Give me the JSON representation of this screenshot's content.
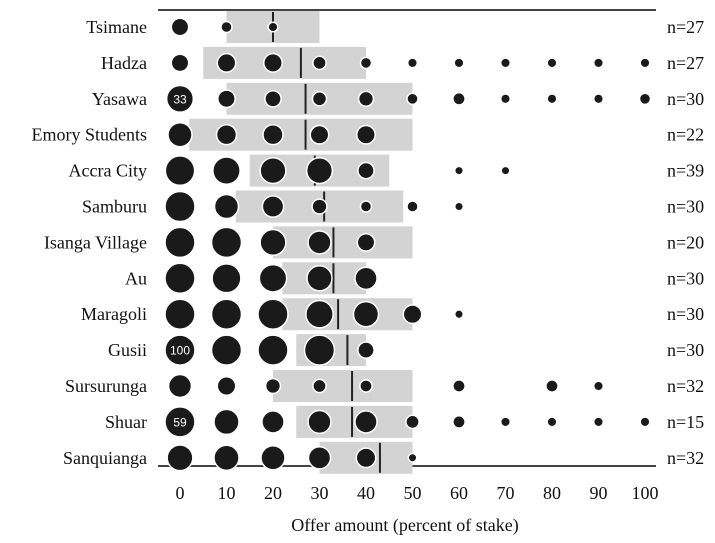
{
  "chart_data": {
    "type": "scatter",
    "title": "",
    "xlabel": "Offer amount (percent of stake)",
    "xlim": [
      0,
      100
    ],
    "xticks": [
      0,
      10,
      20,
      30,
      40,
      50,
      60,
      70,
      80,
      90,
      100
    ],
    "colors": {
      "bar": "#d3d3d3",
      "dot": "#1a1a1a",
      "mean": "#222222",
      "axis": "#444444"
    },
    "rows": [
      {
        "name": "Tsimane",
        "n": "n=27",
        "range": [
          10,
          30
        ],
        "mean": 20,
        "dots": [
          {
            "x": 0,
            "v": 10
          },
          {
            "x": 10,
            "v": 2
          },
          {
            "x": 20,
            "v": 1
          }
        ]
      },
      {
        "name": "Hadza",
        "n": "n=27",
        "range": [
          5,
          40
        ],
        "mean": 26,
        "dots": [
          {
            "x": 0,
            "v": 10
          },
          {
            "x": 10,
            "v": 12
          },
          {
            "x": 20,
            "v": 12
          },
          {
            "x": 30,
            "v": 4
          },
          {
            "x": 40,
            "v": 2
          },
          {
            "x": 50,
            "v": 1
          },
          {
            "x": 60,
            "v": 1
          },
          {
            "x": 70,
            "v": 1
          },
          {
            "x": 80,
            "v": 1
          },
          {
            "x": 90,
            "v": 1
          },
          {
            "x": 100,
            "v": 1
          }
        ]
      },
      {
        "name": "Yasawa",
        "n": "n=30",
        "range": [
          10,
          50
        ],
        "mean": 27,
        "dots": [
          {
            "x": 0,
            "v": 33,
            "label": "33"
          },
          {
            "x": 10,
            "v": 10
          },
          {
            "x": 20,
            "v": 8
          },
          {
            "x": 30,
            "v": 5
          },
          {
            "x": 40,
            "v": 6
          },
          {
            "x": 50,
            "v": 2
          },
          {
            "x": 60,
            "v": 3
          },
          {
            "x": 70,
            "v": 1
          },
          {
            "x": 80,
            "v": 1
          },
          {
            "x": 90,
            "v": 1
          },
          {
            "x": 100,
            "v": 2
          }
        ]
      },
      {
        "name": "Emory Students",
        "n": "n=22",
        "range": [
          2,
          50
        ],
        "mean": 27,
        "dots": [
          {
            "x": 0,
            "v": 25
          },
          {
            "x": 10,
            "v": 15
          },
          {
            "x": 20,
            "v": 15
          },
          {
            "x": 30,
            "v": 12
          },
          {
            "x": 40,
            "v": 12
          }
        ]
      },
      {
        "name": "Accra City",
        "n": "n=39",
        "range": [
          15,
          45
        ],
        "mean": 29,
        "dots": [
          {
            "x": 0,
            "v": 42
          },
          {
            "x": 10,
            "v": 35
          },
          {
            "x": 20,
            "v": 30
          },
          {
            "x": 30,
            "v": 30
          },
          {
            "x": 40,
            "v": 8
          },
          {
            "x": 60,
            "v": 0.5
          },
          {
            "x": 70,
            "v": 0.5
          }
        ]
      },
      {
        "name": "Samburu",
        "n": "n=30",
        "range": [
          12,
          48
        ],
        "mean": 31,
        "dots": [
          {
            "x": 0,
            "v": 50
          },
          {
            "x": 10,
            "v": 25
          },
          {
            "x": 20,
            "v": 18
          },
          {
            "x": 30,
            "v": 6
          },
          {
            "x": 40,
            "v": 2
          },
          {
            "x": 50,
            "v": 2
          },
          {
            "x": 60,
            "v": 0.5
          }
        ]
      },
      {
        "name": "Isanga Village",
        "n": "n=20",
        "range": [
          20,
          50
        ],
        "mean": 33,
        "dots": [
          {
            "x": 0,
            "v": 50
          },
          {
            "x": 10,
            "v": 55
          },
          {
            "x": 20,
            "v": 30
          },
          {
            "x": 30,
            "v": 22
          },
          {
            "x": 40,
            "v": 10
          }
        ]
      },
      {
        "name": "Au",
        "n": "n=30",
        "range": [
          22,
          40
        ],
        "mean": 33,
        "dots": [
          {
            "x": 0,
            "v": 45
          },
          {
            "x": 10,
            "v": 40
          },
          {
            "x": 20,
            "v": 35
          },
          {
            "x": 30,
            "v": 28
          },
          {
            "x": 40,
            "v": 20
          }
        ]
      },
      {
        "name": "Maragoli",
        "n": "n=30",
        "range": [
          22,
          50
        ],
        "mean": 34,
        "dots": [
          {
            "x": 0,
            "v": 55
          },
          {
            "x": 10,
            "v": 60
          },
          {
            "x": 20,
            "v": 45
          },
          {
            "x": 30,
            "v": 35
          },
          {
            "x": 40,
            "v": 28
          },
          {
            "x": 50,
            "v": 12
          },
          {
            "x": 60,
            "v": 0.5
          }
        ]
      },
      {
        "name": "Gusii",
        "n": "n=30",
        "range": [
          25,
          40
        ],
        "mean": 36,
        "dots": [
          {
            "x": 0,
            "v": 100,
            "label": "100"
          },
          {
            "x": 10,
            "v": 70
          },
          {
            "x": 20,
            "v": 70
          },
          {
            "x": 30,
            "v": 60
          },
          {
            "x": 40,
            "v": 8
          }
        ]
      },
      {
        "name": "Sursurunga",
        "n": "n=32",
        "range": [
          20,
          50
        ],
        "mean": 37,
        "dots": [
          {
            "x": 0,
            "v": 22
          },
          {
            "x": 10,
            "v": 12
          },
          {
            "x": 20,
            "v": 6
          },
          {
            "x": 30,
            "v": 4
          },
          {
            "x": 40,
            "v": 3
          },
          {
            "x": 60,
            "v": 3
          },
          {
            "x": 80,
            "v": 3
          },
          {
            "x": 90,
            "v": 1
          }
        ]
      },
      {
        "name": "Shuar",
        "n": "n=15",
        "range": [
          25,
          50
        ],
        "mean": 37,
        "dots": [
          {
            "x": 0,
            "v": 59,
            "label": "59"
          },
          {
            "x": 10,
            "v": 28
          },
          {
            "x": 20,
            "v": 20
          },
          {
            "x": 30,
            "v": 22
          },
          {
            "x": 40,
            "v": 20
          },
          {
            "x": 50,
            "v": 4
          },
          {
            "x": 60,
            "v": 3
          },
          {
            "x": 70,
            "v": 1
          },
          {
            "x": 80,
            "v": 1
          },
          {
            "x": 90,
            "v": 1
          },
          {
            "x": 100,
            "v": 1
          }
        ]
      },
      {
        "name": "Sanquianga",
        "n": "n=32",
        "range": [
          30,
          50
        ],
        "mean": 43,
        "dots": [
          {
            "x": 0,
            "v": 30
          },
          {
            "x": 10,
            "v": 28
          },
          {
            "x": 20,
            "v": 25
          },
          {
            "x": 30,
            "v": 20
          },
          {
            "x": 40,
            "v": 14
          },
          {
            "x": 50,
            "v": 0.5
          }
        ]
      }
    ]
  }
}
